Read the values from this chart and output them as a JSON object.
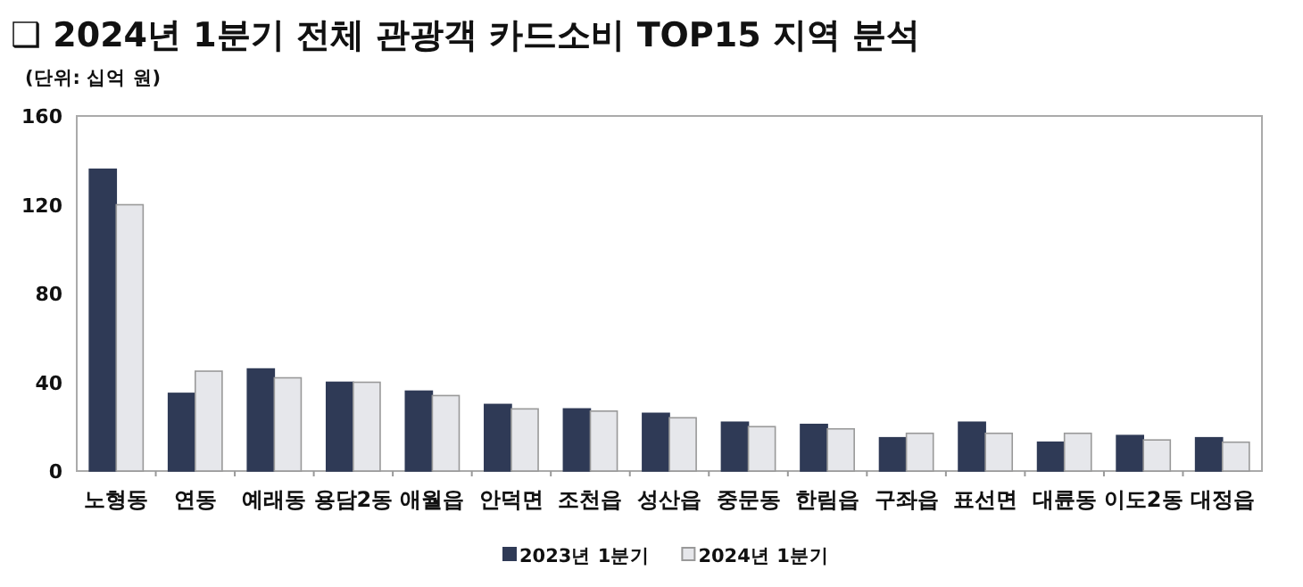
{
  "chart_data": {
    "type": "bar",
    "title": "❑ 2024년 1분기 전체 관광객 카드소비 TOP15 지역 분석",
    "subtitle": "(단위: 십억 원)",
    "categories": [
      "노형동",
      "연동",
      "예래동",
      "용담2동",
      "애월읍",
      "안덕면",
      "조천읍",
      "성산읍",
      "중문동",
      "한림읍",
      "구좌읍",
      "표선면",
      "대륜동",
      "이도2동",
      "대정읍"
    ],
    "series": [
      {
        "name": "2023년 1분기",
        "color": "#2f3a56",
        "values": [
          136,
          35,
          46,
          40,
          36,
          30,
          28,
          26,
          22,
          21,
          15,
          22,
          13,
          16,
          15
        ]
      },
      {
        "name": "2024년 1분기",
        "color": "#e6e7eb",
        "values": [
          120,
          45,
          42,
          40,
          34,
          28,
          27,
          24,
          20,
          19,
          17,
          17,
          17,
          14,
          13
        ]
      }
    ],
    "ylim": [
      0,
      160
    ],
    "yticks": [
      0,
      40,
      80,
      120,
      160
    ],
    "grid": false,
    "legend": "bottom"
  }
}
